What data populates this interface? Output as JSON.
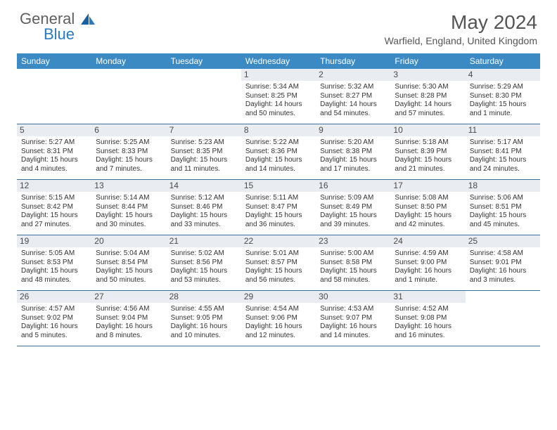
{
  "logo": {
    "text1": "General",
    "text2": "Blue"
  },
  "title": "May 2024",
  "location": "Warfield, England, United Kingdom",
  "header_bg": "#3b8ac4",
  "accent": "#2b7ac0",
  "border": "#3b6f99",
  "daynum_bg": "#e9edf1",
  "days": [
    "Sunday",
    "Monday",
    "Tuesday",
    "Wednesday",
    "Thursday",
    "Friday",
    "Saturday"
  ],
  "weeks": [
    [
      {},
      {},
      {},
      {
        "n": "1",
        "sr": "Sunrise: 5:34 AM",
        "ss": "Sunset: 8:25 PM",
        "dl": "Daylight: 14 hours and 50 minutes."
      },
      {
        "n": "2",
        "sr": "Sunrise: 5:32 AM",
        "ss": "Sunset: 8:27 PM",
        "dl": "Daylight: 14 hours and 54 minutes."
      },
      {
        "n": "3",
        "sr": "Sunrise: 5:30 AM",
        "ss": "Sunset: 8:28 PM",
        "dl": "Daylight: 14 hours and 57 minutes."
      },
      {
        "n": "4",
        "sr": "Sunrise: 5:29 AM",
        "ss": "Sunset: 8:30 PM",
        "dl": "Daylight: 15 hours and 1 minute."
      }
    ],
    [
      {
        "n": "5",
        "sr": "Sunrise: 5:27 AM",
        "ss": "Sunset: 8:31 PM",
        "dl": "Daylight: 15 hours and 4 minutes."
      },
      {
        "n": "6",
        "sr": "Sunrise: 5:25 AM",
        "ss": "Sunset: 8:33 PM",
        "dl": "Daylight: 15 hours and 7 minutes."
      },
      {
        "n": "7",
        "sr": "Sunrise: 5:23 AM",
        "ss": "Sunset: 8:35 PM",
        "dl": "Daylight: 15 hours and 11 minutes."
      },
      {
        "n": "8",
        "sr": "Sunrise: 5:22 AM",
        "ss": "Sunset: 8:36 PM",
        "dl": "Daylight: 15 hours and 14 minutes."
      },
      {
        "n": "9",
        "sr": "Sunrise: 5:20 AM",
        "ss": "Sunset: 8:38 PM",
        "dl": "Daylight: 15 hours and 17 minutes."
      },
      {
        "n": "10",
        "sr": "Sunrise: 5:18 AM",
        "ss": "Sunset: 8:39 PM",
        "dl": "Daylight: 15 hours and 21 minutes."
      },
      {
        "n": "11",
        "sr": "Sunrise: 5:17 AM",
        "ss": "Sunset: 8:41 PM",
        "dl": "Daylight: 15 hours and 24 minutes."
      }
    ],
    [
      {
        "n": "12",
        "sr": "Sunrise: 5:15 AM",
        "ss": "Sunset: 8:42 PM",
        "dl": "Daylight: 15 hours and 27 minutes."
      },
      {
        "n": "13",
        "sr": "Sunrise: 5:14 AM",
        "ss": "Sunset: 8:44 PM",
        "dl": "Daylight: 15 hours and 30 minutes."
      },
      {
        "n": "14",
        "sr": "Sunrise: 5:12 AM",
        "ss": "Sunset: 8:46 PM",
        "dl": "Daylight: 15 hours and 33 minutes."
      },
      {
        "n": "15",
        "sr": "Sunrise: 5:11 AM",
        "ss": "Sunset: 8:47 PM",
        "dl": "Daylight: 15 hours and 36 minutes."
      },
      {
        "n": "16",
        "sr": "Sunrise: 5:09 AM",
        "ss": "Sunset: 8:49 PM",
        "dl": "Daylight: 15 hours and 39 minutes."
      },
      {
        "n": "17",
        "sr": "Sunrise: 5:08 AM",
        "ss": "Sunset: 8:50 PM",
        "dl": "Daylight: 15 hours and 42 minutes."
      },
      {
        "n": "18",
        "sr": "Sunrise: 5:06 AM",
        "ss": "Sunset: 8:51 PM",
        "dl": "Daylight: 15 hours and 45 minutes."
      }
    ],
    [
      {
        "n": "19",
        "sr": "Sunrise: 5:05 AM",
        "ss": "Sunset: 8:53 PM",
        "dl": "Daylight: 15 hours and 48 minutes."
      },
      {
        "n": "20",
        "sr": "Sunrise: 5:04 AM",
        "ss": "Sunset: 8:54 PM",
        "dl": "Daylight: 15 hours and 50 minutes."
      },
      {
        "n": "21",
        "sr": "Sunrise: 5:02 AM",
        "ss": "Sunset: 8:56 PM",
        "dl": "Daylight: 15 hours and 53 minutes."
      },
      {
        "n": "22",
        "sr": "Sunrise: 5:01 AM",
        "ss": "Sunset: 8:57 PM",
        "dl": "Daylight: 15 hours and 56 minutes."
      },
      {
        "n": "23",
        "sr": "Sunrise: 5:00 AM",
        "ss": "Sunset: 8:58 PM",
        "dl": "Daylight: 15 hours and 58 minutes."
      },
      {
        "n": "24",
        "sr": "Sunrise: 4:59 AM",
        "ss": "Sunset: 9:00 PM",
        "dl": "Daylight: 16 hours and 1 minute."
      },
      {
        "n": "25",
        "sr": "Sunrise: 4:58 AM",
        "ss": "Sunset: 9:01 PM",
        "dl": "Daylight: 16 hours and 3 minutes."
      }
    ],
    [
      {
        "n": "26",
        "sr": "Sunrise: 4:57 AM",
        "ss": "Sunset: 9:02 PM",
        "dl": "Daylight: 16 hours and 5 minutes."
      },
      {
        "n": "27",
        "sr": "Sunrise: 4:56 AM",
        "ss": "Sunset: 9:04 PM",
        "dl": "Daylight: 16 hours and 8 minutes."
      },
      {
        "n": "28",
        "sr": "Sunrise: 4:55 AM",
        "ss": "Sunset: 9:05 PM",
        "dl": "Daylight: 16 hours and 10 minutes."
      },
      {
        "n": "29",
        "sr": "Sunrise: 4:54 AM",
        "ss": "Sunset: 9:06 PM",
        "dl": "Daylight: 16 hours and 12 minutes."
      },
      {
        "n": "30",
        "sr": "Sunrise: 4:53 AM",
        "ss": "Sunset: 9:07 PM",
        "dl": "Daylight: 16 hours and 14 minutes."
      },
      {
        "n": "31",
        "sr": "Sunrise: 4:52 AM",
        "ss": "Sunset: 9:08 PM",
        "dl": "Daylight: 16 hours and 16 minutes."
      },
      {}
    ]
  ]
}
